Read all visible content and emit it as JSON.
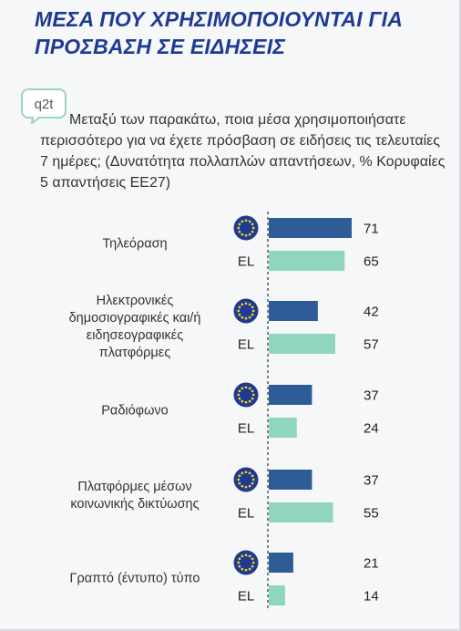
{
  "header": {
    "title_line1": "ΜΕΣΑ ΠΟΥ ΧΡΗΣΙΜΟΠΟΙΟΥΝΤΑΙ ΓΙΑ",
    "title_line2": "ΠΡΟΣΒΑΣΗ ΣΕ ΕΙΔΗΣΕΙΣ"
  },
  "question": {
    "code": "q2t",
    "text": "Μεταξύ των παρακάτω, ποια μέσα χρησιμοποιήσατε περισσότερο για να έχετε πρόσβαση σε ειδήσεις τις τελευταίες 7 ημέρες; (Δυνατότητα πολλαπλών απαντήσεων, % Κορυφαίες 5 απαντήσεις ΕΕ27)"
  },
  "colors": {
    "eu": "#2e5c96",
    "el": "#8fd6bd",
    "title": "#1f3a93",
    "flag": "#1f3a93",
    "stars": "#f7d117"
  },
  "chart_data": {
    "type": "bar",
    "orientation": "horizontal",
    "categories": [
      "Τηλεόραση",
      "Ηλεκτρονικές δημοσιογραφικές και/ή ειδησεογραφικές πλατφόρμες",
      "Ραδιόφωνο",
      "Πλατφόρμες μέσων κοινωνικής δικτύωσης",
      "Γραπτό (έντυπο) τύπο"
    ],
    "category_lines": [
      [
        "Τηλεόραση"
      ],
      [
        "Ηλεκτρονικές",
        "δημοσιογραφικές και/ή",
        "ειδησεογραφικές",
        "πλατφόρμες"
      ],
      [
        "Ραδιόφωνο"
      ],
      [
        "Πλατφόρμες μέσων",
        "κοινωνικής δικτύωσης"
      ],
      [
        "Γραπτό (έντυπο) τύπο"
      ]
    ],
    "series": [
      {
        "name": "EU",
        "label": "",
        "icon": "eu-flag-icon",
        "values": [
          71,
          42,
          37,
          37,
          21
        ]
      },
      {
        "name": "EL",
        "label": "EL",
        "icon": "",
        "values": [
          65,
          57,
          24,
          55,
          14
        ]
      }
    ],
    "xlim": [
      0,
      100
    ],
    "unit": "%",
    "grid": false,
    "legend": "none"
  }
}
